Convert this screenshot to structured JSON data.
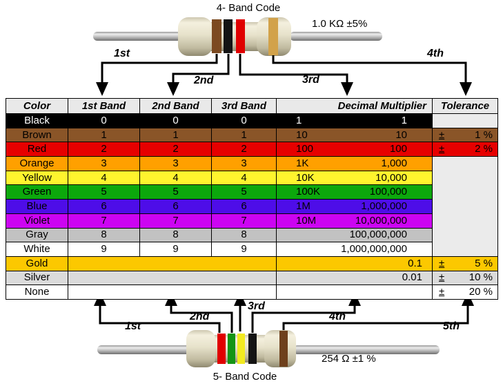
{
  "diagram_top": {
    "title": "4- Band Code",
    "value_label": "1.0 KΩ ±5%",
    "band_colors": [
      "#7c4a21",
      "#141414",
      "#e00000",
      "#d2a24a"
    ],
    "arrow_labels": [
      "1st",
      "2nd",
      "3rd",
      "4th"
    ]
  },
  "diagram_bottom": {
    "title": "5- Band Code",
    "value_label": "254 Ω ±1 %",
    "band_colors": [
      "#e00000",
      "#159415",
      "#f2ea20",
      "#141414",
      "#6e401c"
    ],
    "arrow_labels": [
      "1st",
      "2nd",
      "3rd",
      "4th",
      "5th"
    ]
  },
  "table": {
    "headers": [
      "Color",
      "1st Band",
      "2nd Band",
      "3rd Band",
      "Decimal Multiplier",
      "Tolerance"
    ],
    "header_bg": "#e9e9e9",
    "empty_tolerance_bg": "#ebebeb",
    "rows": [
      {
        "name": "Black",
        "bg": "#000000",
        "fg": "#ffffff",
        "bands": [
          "0",
          "0",
          "0"
        ],
        "mult_abbr": "1",
        "mult_full": "1",
        "tol": {
          "kind": "empty"
        }
      },
      {
        "name": "Brown",
        "bg": "#8a5528",
        "bands": [
          "1",
          "1",
          "1"
        ],
        "mult_abbr": "10",
        "mult_full": "10",
        "tol": {
          "kind": "value",
          "sign": "±",
          "value": "1 %"
        }
      },
      {
        "name": "Red",
        "bg": "#e60000",
        "bands": [
          "2",
          "2",
          "2"
        ],
        "mult_abbr": "100",
        "mult_full": "100",
        "tol": {
          "kind": "value",
          "sign": "±",
          "value": "2 %"
        }
      },
      {
        "name": "Orange",
        "bg": "#ffa000",
        "bands": [
          "3",
          "3",
          "3"
        ],
        "mult_abbr": "1K",
        "mult_full": "1,000",
        "tol": {
          "kind": "merged",
          "span": 7
        }
      },
      {
        "name": "Yellow",
        "bg": "#fff42e",
        "bands": [
          "4",
          "4",
          "4"
        ],
        "mult_abbr": "10K",
        "mult_full": "10,000",
        "tol": {
          "kind": "covered"
        }
      },
      {
        "name": "Green",
        "bg": "#0ca80c",
        "bands": [
          "5",
          "5",
          "5"
        ],
        "mult_abbr": "100K",
        "mult_full": "100,000",
        "tol": {
          "kind": "covered"
        }
      },
      {
        "name": "Blue",
        "bg": "#4e0de8",
        "bands": [
          "6",
          "6",
          "6"
        ],
        "mult_abbr": "1M",
        "mult_full": "1,000,000",
        "tol": {
          "kind": "covered"
        }
      },
      {
        "name": "Violet",
        "bg": "#cc04f2",
        "bands": [
          "7",
          "7",
          "7"
        ],
        "mult_abbr": "10M",
        "mult_full": "10,000,000",
        "tol": {
          "kind": "covered"
        }
      },
      {
        "name": "Gray",
        "bg": "#c2c2c2",
        "bands": [
          "8",
          "8",
          "8"
        ],
        "mult_abbr": "",
        "mult_full": "100,000,000",
        "tol": {
          "kind": "covered"
        }
      },
      {
        "name": "White",
        "bg": "#ffffff",
        "bands": [
          "9",
          "9",
          "9"
        ],
        "mult_abbr": "",
        "mult_full": "1,000,000,000",
        "tol": {
          "kind": "covered"
        }
      },
      {
        "name": "Gold",
        "bg": "#fcc800",
        "bands": null,
        "mult_abbr": "",
        "mult_full": "0.1",
        "mult_tight": true,
        "tol": {
          "kind": "value",
          "sign": "±",
          "value": "5 %"
        }
      },
      {
        "name": "Silver",
        "bg": "#dbdbdb",
        "bands": null,
        "mult_abbr": "",
        "mult_full": "0.01",
        "mult_tight": true,
        "tol": {
          "kind": "value",
          "sign": "±",
          "value": "10 %"
        }
      },
      {
        "name": "None",
        "bg": "#ffffff",
        "bands": null,
        "mult_abbr": "",
        "mult_full": "",
        "tol": {
          "kind": "value",
          "sign": "±",
          "value": "20 %"
        }
      }
    ]
  }
}
